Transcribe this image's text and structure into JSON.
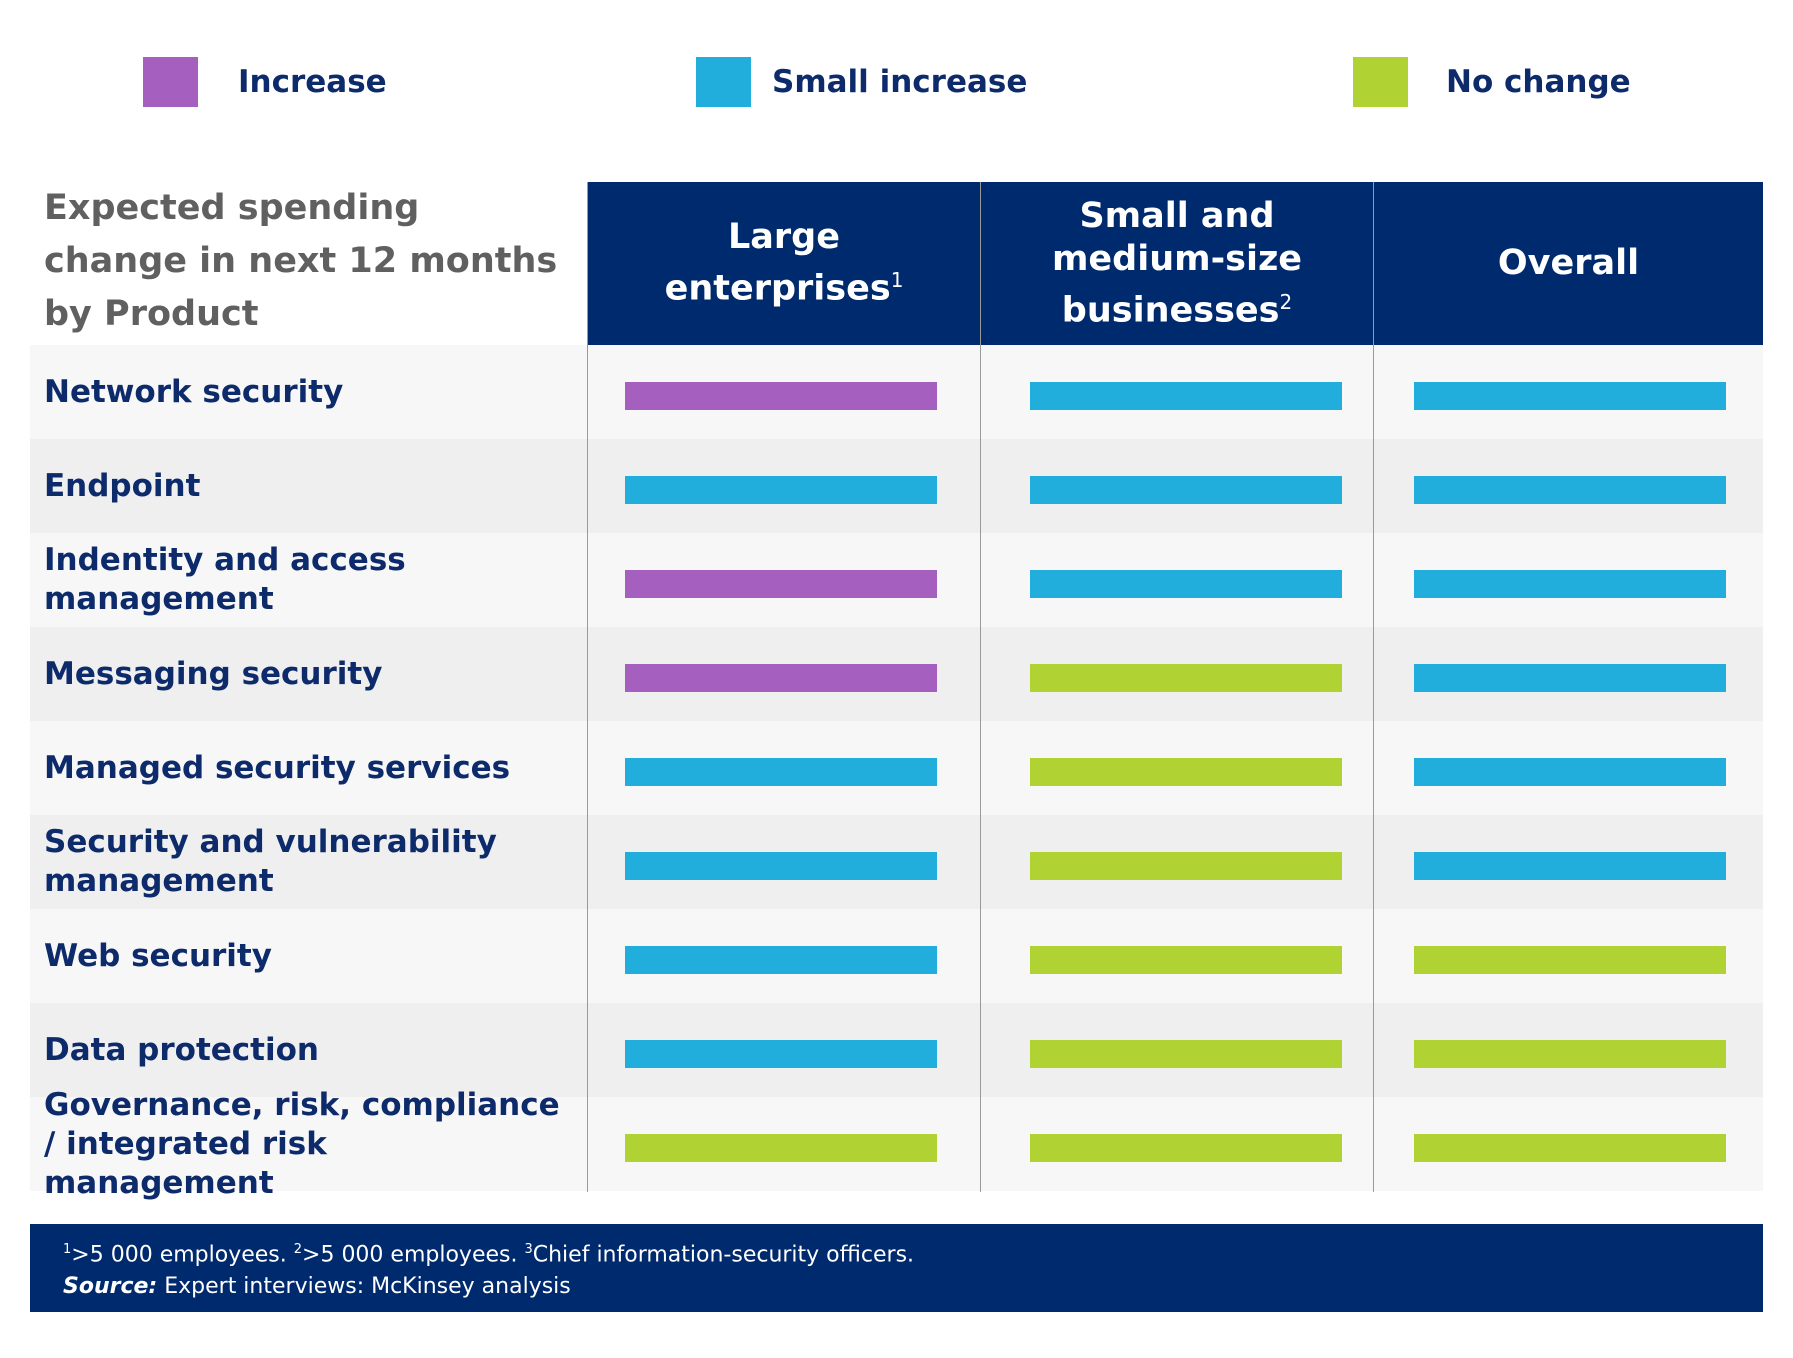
{
  "legend": [
    {
      "label": "Increase",
      "color": "#a55fbf"
    },
    {
      "label": "Small increase",
      "color": "#22aedd"
    },
    {
      "label": "No change",
      "color": "#b0d232"
    }
  ],
  "table": {
    "row_header": "Expected spending change in next 12 months by Product",
    "columns": [
      {
        "label": "Large enterprises",
        "footnote": "1"
      },
      {
        "label": "Small and medium-size businesses",
        "footnote": "2"
      },
      {
        "label": "Overall",
        "footnote": ""
      }
    ]
  },
  "chart_data": {
    "type": "table",
    "title": "Expected spending change in next 12 months by Product",
    "columns": [
      "Large enterprises",
      "Small and medium-size businesses",
      "Overall"
    ],
    "rows": [
      {
        "product": "Network security",
        "values": [
          "Increase",
          "Small increase",
          "Small increase"
        ]
      },
      {
        "product": "Endpoint",
        "values": [
          "Small increase",
          "Small increase",
          "Small increase"
        ]
      },
      {
        "product": "Indentity and access management",
        "values": [
          "Increase",
          "Small increase",
          "Small increase"
        ]
      },
      {
        "product": "Messaging security",
        "values": [
          "Increase",
          "No change",
          "Small increase"
        ]
      },
      {
        "product": "Managed security services",
        "values": [
          "Small increase",
          "No change",
          "Small increase"
        ]
      },
      {
        "product": "Security and vulnerability management",
        "values": [
          "Small increase",
          "No change",
          "Small increase"
        ]
      },
      {
        "product": "Web security",
        "values": [
          "Small increase",
          "No change",
          "No change"
        ]
      },
      {
        "product": "Data protection",
        "values": [
          "Small increase",
          "No change",
          "No change"
        ]
      },
      {
        "product": "Governance, risk, compliance / integrated risk management",
        "values": [
          "No change",
          "No change",
          "No change"
        ]
      }
    ]
  },
  "footer": {
    "footnotes": ">5 000 employees. >5 000 employees. Chief information-security officers.",
    "fn1": ">5 000 employees. ",
    "fn2": ">5 000 employees. ",
    "fn3": "Chief information-security officers.",
    "source_label": "Source:",
    "source_text": " Expert interviews: McKinsey analysis"
  }
}
